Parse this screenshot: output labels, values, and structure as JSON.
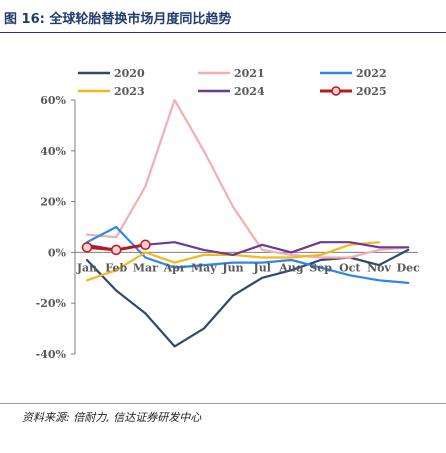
{
  "figure": {
    "title": "图 16:  全球轮胎替换市场月度同比趋势",
    "source": "资料来源:  倍耐力, 信达证券研发中心"
  },
  "chart_data": {
    "type": "line",
    "categories": [
      "Jan",
      "Feb",
      "Mar",
      "Apr",
      "May",
      "Jun",
      "Jul",
      "Aug",
      "Sep",
      "Oct",
      "Nov",
      "Dec"
    ],
    "ylim": [
      -40,
      60
    ],
    "yticks": [
      60,
      40,
      20,
      0,
      -20,
      -40
    ],
    "ytick_labels": [
      "60%",
      "40%",
      "20%",
      "0%",
      "-20%",
      "-40%"
    ],
    "grid": false,
    "legend": "top",
    "series": [
      {
        "name": "2020",
        "color": "#2e4a6e",
        "values": [
          -3,
          -15,
          -24,
          -37,
          -30,
          -17,
          -10,
          -7,
          -3,
          -2,
          -5,
          1
        ]
      },
      {
        "name": "2021",
        "color": "#f4aeb0",
        "values": [
          7,
          6,
          26,
          60,
          40,
          18,
          1,
          -1,
          -2,
          -2,
          1,
          2
        ]
      },
      {
        "name": "2022",
        "color": "#2e86e8",
        "values": [
          4,
          10,
          -2,
          -6,
          -5,
          -4,
          -4,
          -3,
          -6,
          -9,
          -11,
          -12
        ]
      },
      {
        "name": "2023",
        "color": "#f2b820",
        "values": [
          -11,
          -7,
          0,
          -4,
          -1,
          -1,
          -2,
          -2,
          -1,
          3,
          4,
          null
        ]
      },
      {
        "name": "2024",
        "color": "#6b3a97",
        "values": [
          3,
          1,
          3,
          4,
          1,
          -1,
          3,
          0,
          4,
          4,
          2,
          2
        ]
      },
      {
        "name": "2025",
        "color": "#c0161a",
        "values": [
          2,
          1,
          3,
          null,
          null,
          null,
          null,
          null,
          null,
          null,
          null,
          null
        ],
        "markers": true
      }
    ]
  }
}
